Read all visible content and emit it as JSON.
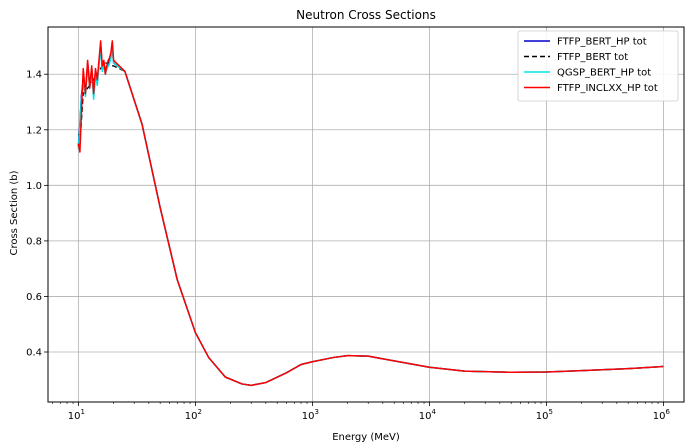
{
  "chart_data": {
    "type": "line",
    "title": "Neutron Cross Sections",
    "xlabel": "Energy (MeV)",
    "ylabel": "Cross Section (b)",
    "xscale": "log",
    "xlim": [
      5.5,
      1500000
    ],
    "ylim": [
      0.22,
      1.57
    ],
    "grid": true,
    "legend_position": "top-right",
    "x_ticks": [
      {
        "value": 10,
        "base": "10",
        "exp": "1"
      },
      {
        "value": 100,
        "base": "10",
        "exp": "2"
      },
      {
        "value": 1000,
        "base": "10",
        "exp": "3"
      },
      {
        "value": 10000,
        "base": "10",
        "exp": "4"
      },
      {
        "value": 100000,
        "base": "10",
        "exp": "5"
      },
      {
        "value": 1000000,
        "base": "10",
        "exp": "6"
      }
    ],
    "y_ticks": [
      {
        "value": 0.4,
        "label": "0.4"
      },
      {
        "value": 0.6,
        "label": "0.6"
      },
      {
        "value": 0.8,
        "label": "0.8"
      },
      {
        "value": 1.0,
        "label": "1.0"
      },
      {
        "value": 1.2,
        "label": "1.2"
      },
      {
        "value": 1.4,
        "label": "1.4"
      }
    ],
    "series": [
      {
        "name": "FTFP_BERT_HP tot",
        "color": "#0000cc",
        "dash": "solid",
        "x": [
          10,
          10.3,
          10.6,
          11,
          11.5,
          12,
          12.5,
          13,
          13.5,
          14,
          14.5,
          15,
          15.5,
          16,
          16.5,
          17,
          17.5,
          18,
          18.5,
          19,
          19.5,
          20,
          25,
          35,
          50,
          70,
          100,
          130,
          180,
          250,
          300,
          400,
          600,
          800,
          1000,
          1500,
          2000,
          3000,
          5000,
          10000,
          20000,
          50000,
          100000,
          200000,
          500000,
          1000000
        ],
        "y": [
          1.14,
          1.22,
          1.32,
          1.38,
          1.33,
          1.44,
          1.36,
          1.42,
          1.33,
          1.41,
          1.37,
          1.44,
          1.51,
          1.42,
          1.44,
          1.41,
          1.43,
          1.44,
          1.45,
          1.47,
          1.5,
          1.44,
          1.41,
          1.22,
          0.92,
          0.66,
          0.47,
          0.38,
          0.31,
          0.285,
          0.28,
          0.29,
          0.325,
          0.355,
          0.365,
          0.38,
          0.387,
          0.385,
          0.368,
          0.345,
          0.331,
          0.327,
          0.328,
          0.333,
          0.34,
          0.348
        ]
      },
      {
        "name": "FTFP_BERT tot",
        "color": "#000000",
        "dash": "dashed",
        "x": [
          10,
          10.5,
          11,
          12,
          13,
          14,
          15,
          16,
          17,
          18,
          19,
          20,
          25,
          35,
          50,
          70,
          100,
          130,
          180,
          250,
          300,
          400,
          600,
          800,
          1000,
          1500,
          2000,
          3000,
          5000,
          10000,
          20000,
          50000,
          100000,
          200000,
          500000,
          1000000
        ],
        "y": [
          1.18,
          1.2,
          1.33,
          1.35,
          1.37,
          1.39,
          1.41,
          1.43,
          1.44,
          1.44,
          1.43,
          1.43,
          1.41,
          1.22,
          0.92,
          0.66,
          0.47,
          0.38,
          0.31,
          0.285,
          0.28,
          0.29,
          0.325,
          0.355,
          0.365,
          0.38,
          0.387,
          0.385,
          0.368,
          0.345,
          0.331,
          0.327,
          0.328,
          0.333,
          0.34,
          0.348
        ]
      },
      {
        "name": "QGSP_BERT_HP tot",
        "color": "#00e5e5",
        "dash": "solid",
        "x": [
          10,
          10.3,
          10.6,
          11,
          11.5,
          12,
          12.5,
          13,
          13.5,
          14,
          14.5,
          15,
          15.5,
          16,
          16.5,
          17,
          17.5,
          18,
          18.5,
          19,
          19.5,
          20,
          25,
          35,
          50,
          70,
          100,
          130,
          180,
          250,
          300,
          400,
          600,
          800,
          1000,
          1500,
          2000,
          3000,
          5000,
          10000,
          20000,
          50000,
          100000,
          200000,
          500000,
          1000000
        ],
        "y": [
          1.13,
          1.21,
          1.31,
          1.37,
          1.32,
          1.43,
          1.35,
          1.41,
          1.31,
          1.4,
          1.36,
          1.43,
          1.5,
          1.41,
          1.43,
          1.4,
          1.42,
          1.43,
          1.44,
          1.46,
          1.49,
          1.44,
          1.41,
          1.22,
          0.92,
          0.66,
          0.47,
          0.38,
          0.31,
          0.285,
          0.28,
          0.29,
          0.325,
          0.355,
          0.365,
          0.38,
          0.387,
          0.385,
          0.368,
          0.345,
          0.331,
          0.327,
          0.328,
          0.333,
          0.34,
          0.348
        ]
      },
      {
        "name": "FTFP_INCLXX_HP tot",
        "color": "#ff0000",
        "dash": "solid",
        "x": [
          10,
          10.3,
          10.6,
          11,
          11.5,
          12,
          12.5,
          13,
          13.5,
          14,
          14.5,
          15,
          15.5,
          16,
          16.5,
          17,
          17.5,
          18,
          18.5,
          19,
          19.5,
          20,
          25,
          35,
          50,
          70,
          100,
          130,
          180,
          250,
          300,
          400,
          600,
          800,
          1000,
          1500,
          2000,
          3000,
          5000,
          10000,
          20000,
          50000,
          100000,
          200000,
          500000,
          1000000
        ],
        "y": [
          1.15,
          1.12,
          1.25,
          1.42,
          1.33,
          1.45,
          1.35,
          1.43,
          1.33,
          1.42,
          1.38,
          1.45,
          1.52,
          1.43,
          1.45,
          1.4,
          1.43,
          1.45,
          1.46,
          1.48,
          1.52,
          1.45,
          1.41,
          1.22,
          0.92,
          0.66,
          0.47,
          0.38,
          0.31,
          0.285,
          0.28,
          0.29,
          0.325,
          0.355,
          0.365,
          0.38,
          0.387,
          0.385,
          0.368,
          0.345,
          0.331,
          0.327,
          0.328,
          0.333,
          0.34,
          0.348
        ]
      }
    ]
  }
}
